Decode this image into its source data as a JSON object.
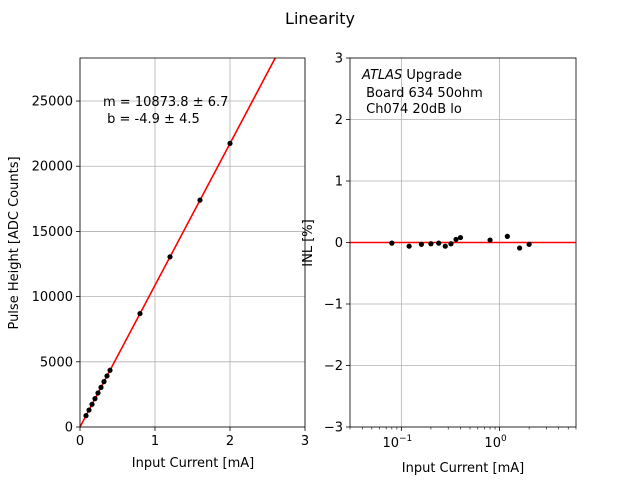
{
  "figure": {
    "title": "Linearity"
  },
  "chart_data": [
    {
      "type": "scatter",
      "panel": "left",
      "xlabel": "Input Current [mA]",
      "ylabel": "Pulse Height [ADC Counts]",
      "xlim": [
        0,
        3
      ],
      "ylim": [
        0,
        28300
      ],
      "xticks": [
        0,
        1,
        2,
        3
      ],
      "yticks": [
        0,
        5000,
        10000,
        15000,
        20000,
        25000
      ],
      "grid": true,
      "annotation": [
        "m = 10873.8 ± 6.7",
        " b = -4.9 ± 4.5"
      ],
      "points": {
        "x": [
          0.08,
          0.12,
          0.16,
          0.2,
          0.24,
          0.28,
          0.32,
          0.36,
          0.4,
          0.8,
          1.2,
          1.6,
          2.0
        ],
        "y": [
          870,
          1300,
          1740,
          2175,
          2610,
          3040,
          3480,
          3915,
          4350,
          8700,
          13050,
          17400,
          21750
        ],
        "color": "#000000"
      },
      "fit": {
        "slope": 10873.8,
        "intercept": -4.9,
        "color": "#ff0000"
      }
    },
    {
      "type": "scatter",
      "panel": "right",
      "xlabel": "Input Current [mA]",
      "ylabel": "INL [%]",
      "xscale": "log",
      "xlim": [
        0.03,
        6
      ],
      "ylim": [
        -3,
        3
      ],
      "xticks": [
        0.1,
        1
      ],
      "xtick_labels": [
        [
          "10",
          "−1"
        ],
        [
          "10",
          "0"
        ]
      ],
      "yticks": [
        -3,
        -2,
        -1,
        0,
        1,
        2,
        3
      ],
      "ytick_labels": [
        "−3",
        "−2",
        "−1",
        "0",
        "1",
        "2",
        "3"
      ],
      "grid": true,
      "legend_text": {
        "italic": "ATLAS",
        "rest": " Upgrade",
        "line2": " Board 634 50ohm",
        "line3": " Ch074 20dB lo"
      },
      "points": {
        "x": [
          0.08,
          0.12,
          0.16,
          0.2,
          0.24,
          0.28,
          0.32,
          0.36,
          0.4,
          0.8,
          1.2,
          1.6,
          2.0
        ],
        "y": [
          -0.01,
          -0.06,
          -0.03,
          -0.02,
          -0.01,
          -0.06,
          -0.02,
          0.05,
          0.08,
          0.04,
          0.1,
          -0.09,
          -0.03
        ],
        "color": "#000000"
      },
      "zero_line": {
        "y": 0,
        "color": "#ff0000"
      }
    }
  ]
}
